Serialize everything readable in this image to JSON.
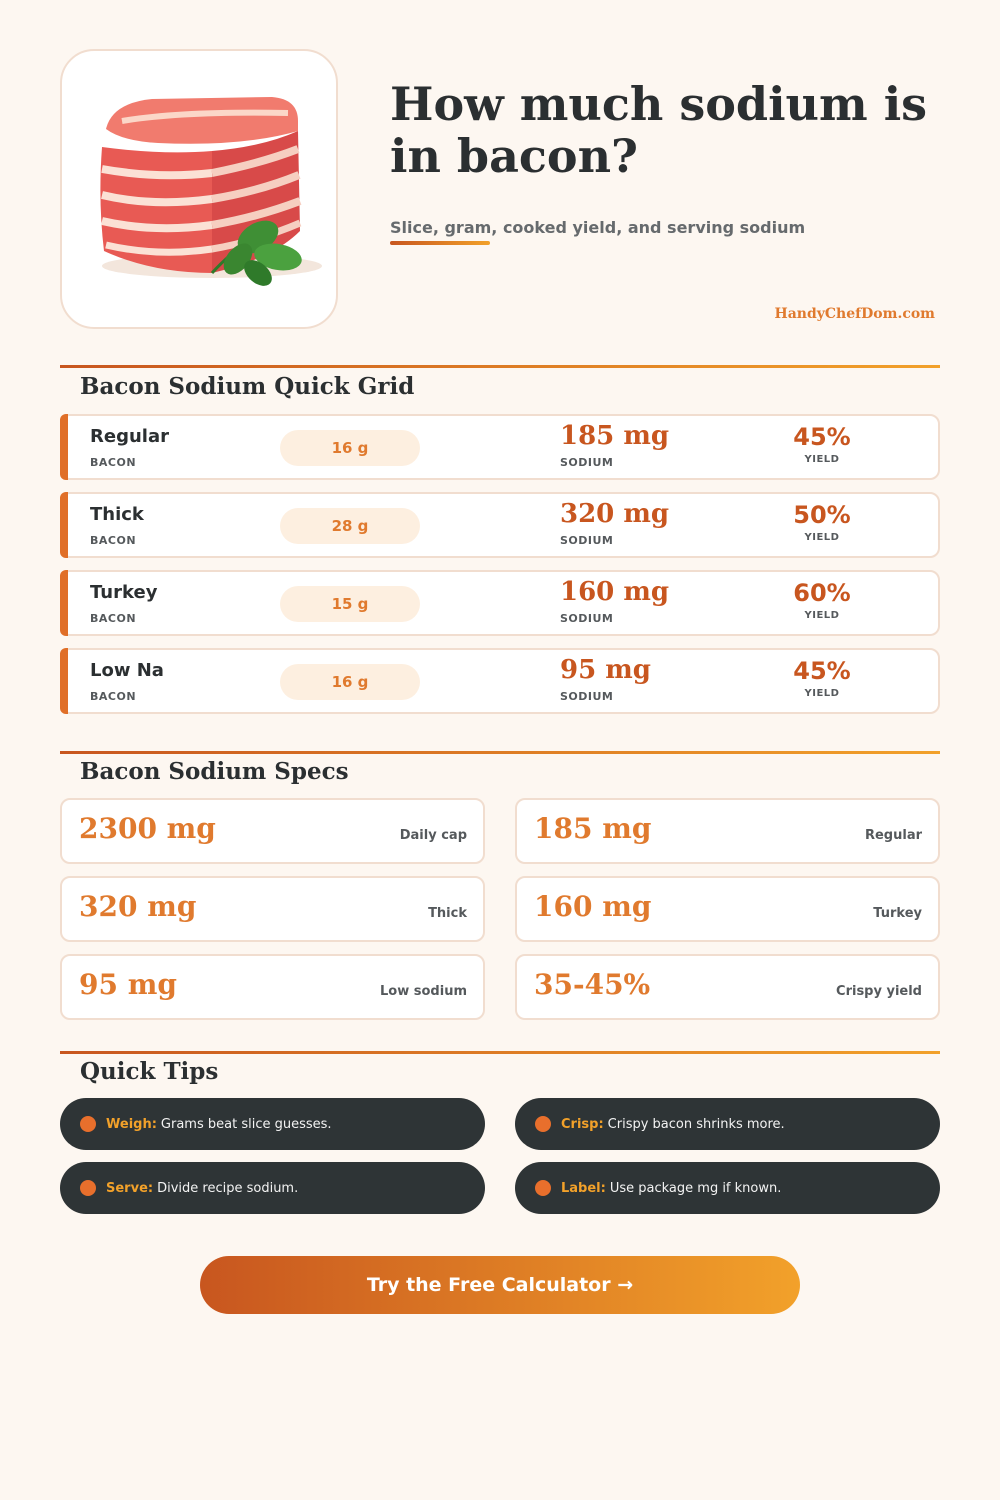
{
  "header": {
    "title": "How much sodium is in bacon?",
    "subtitle": "Slice, gram, cooked yield, and serving sodium",
    "brand": "HandyChefDom.com"
  },
  "hero": {
    "icon": "bacon-icon"
  },
  "quick_grid": {
    "title": "Bacon Sodium Quick Grid",
    "rows": [
      {
        "name": "Regular",
        "type": "BACON",
        "weight": "16 g",
        "sodium": "185 mg",
        "sodium_label": "SODIUM",
        "yield": "45%",
        "yield_label": "YIELD"
      },
      {
        "name": "Thick",
        "type": "BACON",
        "weight": "28 g",
        "sodium": "320 mg",
        "sodium_label": "SODIUM",
        "yield": "50%",
        "yield_label": "YIELD"
      },
      {
        "name": "Turkey",
        "type": "BACON",
        "weight": "15 g",
        "sodium": "160 mg",
        "sodium_label": "SODIUM",
        "yield": "60%",
        "yield_label": "YIELD"
      },
      {
        "name": "Low Na",
        "type": "BACON",
        "weight": "16 g",
        "sodium": "95 mg",
        "sodium_label": "SODIUM",
        "yield": "45%",
        "yield_label": "YIELD"
      }
    ]
  },
  "specs": {
    "title": "Bacon Sodium Specs",
    "items": [
      {
        "value": "2300 mg",
        "label": "Daily cap"
      },
      {
        "value": "185 mg",
        "label": "Regular"
      },
      {
        "value": "320 mg",
        "label": "Thick"
      },
      {
        "value": "160 mg",
        "label": "Turkey"
      },
      {
        "value": "95 mg",
        "label": "Low sodium"
      },
      {
        "value": "35-45%",
        "label": "Crispy yield"
      }
    ]
  },
  "tips": {
    "title": "Quick Tips",
    "items": [
      {
        "key": "Weigh:",
        "text": "Grams beat slice guesses."
      },
      {
        "key": "Crisp:",
        "text": "Crispy bacon shrinks more."
      },
      {
        "key": "Serve:",
        "text": "Divide recipe sodium."
      },
      {
        "key": "Label:",
        "text": "Use package mg if known."
      }
    ]
  },
  "cta": {
    "label": "Try the Free Calculator →"
  },
  "colors": {
    "accent": "#e07a2e",
    "accent_dark": "#c8561f",
    "accent_light": "#f2a12a",
    "tip_bg": "#2e3436"
  }
}
